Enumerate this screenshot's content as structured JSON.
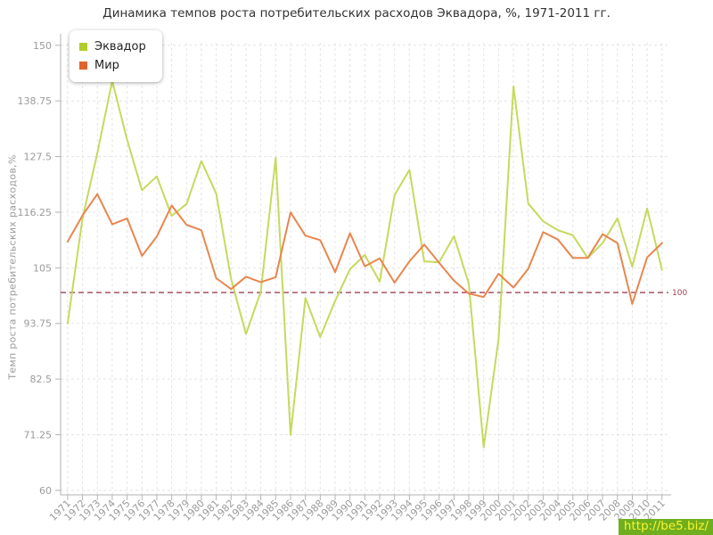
{
  "title": "Динамика темпов роста потребительских расходов Эквадора, %, 1971-2011 гг.",
  "legend": [
    {
      "label": "Эквадор",
      "color": "#b3cc2a"
    },
    {
      "label": "Мир",
      "color": "#e0632d"
    }
  ],
  "y_axis": {
    "label": "Темп роста потребительских расходов,%",
    "ticks": [
      60,
      71.25,
      82.5,
      93.75,
      105,
      116.25,
      127.5,
      138.75,
      150
    ]
  },
  "reference_line": {
    "value": 100,
    "label": "100",
    "color": "#9c4153"
  },
  "watermark": {
    "text": "http://be5.biz/",
    "bg": "#6fae1f",
    "fg": "#fcf32d"
  },
  "colors": {
    "grid": "#e4e4e4",
    "axis": "#b3b3b3",
    "tick_text": "#9b9b9b",
    "ecuador_line": "#c5da5d",
    "world_line": "#e8864e"
  },
  "chart_data": {
    "type": "line",
    "title": "Динамика темпов роста потребительских расходов Эквадора, %, 1971-2011 гг.",
    "xlabel": "",
    "ylabel": "Темп роста потребительских расходов,%",
    "ylim": [
      60,
      150
    ],
    "grid": true,
    "legend_position": "top-left",
    "reference_value": 100,
    "x": [
      1971,
      1972,
      1973,
      1974,
      1975,
      1976,
      1977,
      1978,
      1979,
      1980,
      1981,
      1982,
      1983,
      1984,
      1985,
      1986,
      1987,
      1988,
      1989,
      1990,
      1991,
      1992,
      1993,
      1994,
      1995,
      1996,
      1997,
      1998,
      1999,
      2000,
      2001,
      2002,
      2003,
      2004,
      2005,
      2006,
      2007,
      2008,
      2009,
      2010,
      2011
    ],
    "series": [
      {
        "name": "Эквадор",
        "color": "#c5da5d",
        "values": [
          93.8,
          115.0,
          128.2,
          142.8,
          130.9,
          120.7,
          123.5,
          115.5,
          117.9,
          126.6,
          120.0,
          102.8,
          91.6,
          100.2,
          127.2,
          71.2,
          98.9,
          91.0,
          98.3,
          104.7,
          107.6,
          102.2,
          119.7,
          124.8,
          106.3,
          106.1,
          111.4,
          101.8,
          68.7,
          90.6,
          141.7,
          118.0,
          114.4,
          112.6,
          111.6,
          107.0,
          110.0,
          115.0,
          105.2,
          117.0,
          104.6
        ]
      },
      {
        "name": "Мир",
        "color": "#e8864e",
        "values": [
          110.3,
          115.6,
          119.9,
          113.8,
          115.0,
          107.4,
          111.3,
          117.6,
          113.7,
          112.6,
          102.9,
          100.7,
          103.2,
          102.1,
          103.1,
          116.2,
          111.5,
          110.6,
          104.1,
          112.0,
          105.3,
          106.9,
          102.0,
          106.3,
          109.7,
          106.0,
          102.4,
          99.8,
          99.1,
          103.8,
          101.0,
          104.8,
          112.2,
          110.7,
          107.0,
          107.0,
          111.8,
          110.0,
          97.7,
          107.1,
          110.0
        ]
      }
    ]
  }
}
